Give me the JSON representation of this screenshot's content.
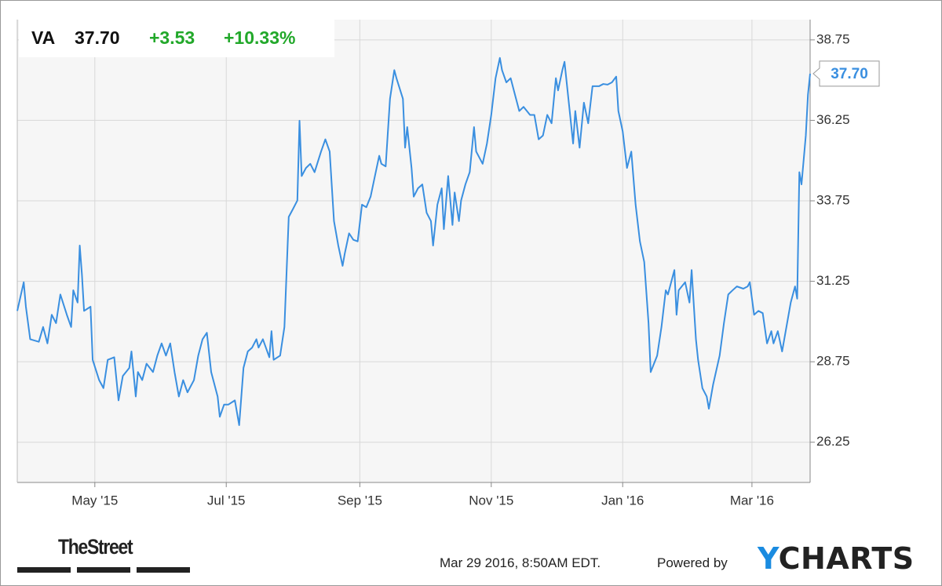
{
  "chart_data": {
    "type": "line",
    "quote": {
      "symbol": "VA",
      "price": "37.70",
      "change": "+3.53",
      "change_percent": "+10.33%"
    },
    "x": [
      0,
      3,
      4,
      6,
      10,
      12,
      14,
      16,
      18,
      20,
      23,
      25,
      26,
      28,
      29,
      30,
      31,
      34,
      35,
      38,
      40,
      42,
      45,
      47,
      49,
      52,
      53,
      55,
      56,
      58,
      60,
      63,
      65,
      67,
      69,
      71,
      73,
      75,
      77,
      79,
      82,
      84,
      86,
      88,
      90,
      93,
      94,
      96,
      98,
      101,
      103,
      105,
      107,
      109,
      111,
      112,
      114,
      117,
      118,
      119,
      122,
      124,
      126,
      128,
      130,
      131,
      132,
      134,
      136,
      138,
      141,
      143,
      145,
      147,
      149,
      151,
      152,
      154,
      156,
      158,
      160,
      162,
      164,
      166,
      168,
      169,
      171,
      173,
      175,
      176,
      179,
      180,
      181,
      183,
      184,
      186,
      188,
      190,
      192,
      193,
      195,
      197,
      198,
      200,
      202,
      203,
      205,
      206,
      208,
      210,
      212,
      213,
      216,
      218,
      220,
      222,
      224,
      225,
      227,
      229,
      231,
      233,
      235,
      238,
      240,
      242,
      244,
      246,
      248,
      250,
      251,
      253,
      254,
      256,
      258,
      259,
      261,
      263,
      265,
      267,
      270,
      272,
      274,
      276,
      278,
      279,
      281,
      283,
      285,
      287,
      289,
      291,
      293,
      294,
      297,
      299,
      301,
      302,
      305,
      306,
      307,
      310,
      312,
      313,
      315,
      316,
      318,
      320,
      321,
      323,
      326,
      328,
      330,
      332,
      334,
      337,
      339,
      340,
      342,
      344,
      346,
      348,
      350,
      351,
      353,
      355,
      357,
      359,
      361,
      362,
      363,
      364,
      366,
      367,
      368
    ],
    "series": [
      {
        "name": "VA",
        "color": "#3a8fe0",
        "values": [
          30.33,
          31.22,
          30.46,
          29.45,
          29.37,
          29.83,
          29.32,
          30.21,
          29.95,
          30.84,
          30.21,
          29.83,
          30.97,
          30.59,
          32.36,
          31.47,
          30.33,
          30.46,
          28.81,
          28.18,
          27.93,
          28.81,
          28.89,
          27.55,
          28.31,
          28.56,
          29.07,
          27.67,
          28.43,
          28.18,
          28.69,
          28.43,
          28.94,
          29.32,
          28.94,
          29.32,
          28.43,
          27.67,
          28.18,
          27.8,
          28.18,
          28.94,
          29.45,
          29.65,
          28.43,
          27.67,
          27.04,
          27.42,
          27.42,
          27.55,
          26.78,
          28.56,
          29.07,
          29.19,
          29.45,
          29.19,
          29.45,
          28.89,
          29.7,
          28.81,
          28.94,
          29.83,
          33.25,
          33.5,
          33.76,
          36.24,
          34.52,
          34.77,
          34.9,
          34.64,
          35.28,
          35.66,
          35.28,
          33.12,
          32.36,
          31.73,
          32.11,
          32.74,
          32.54,
          32.49,
          33.63,
          33.55,
          33.88,
          34.52,
          35.15,
          34.9,
          34.82,
          36.92,
          37.81,
          37.56,
          36.92,
          35.4,
          36.04,
          34.77,
          33.88,
          34.14,
          34.26,
          33.38,
          33.12,
          32.36,
          33.63,
          34.14,
          32.87,
          34.52,
          33.0,
          34.01,
          33.12,
          33.76,
          34.26,
          34.64,
          36.04,
          35.28,
          34.9,
          35.53,
          36.42,
          37.56,
          38.19,
          37.81,
          37.43,
          37.56,
          37.05,
          36.54,
          36.67,
          36.42,
          36.42,
          35.66,
          35.78,
          36.42,
          36.16,
          37.56,
          37.18,
          37.81,
          38.07,
          36.8,
          35.53,
          36.54,
          35.4,
          36.8,
          36.16,
          37.31,
          37.31,
          37.38,
          37.36,
          37.43,
          37.61,
          36.54,
          35.91,
          34.77,
          35.28,
          33.63,
          32.49,
          31.85,
          29.95,
          28.43,
          28.94,
          29.83,
          30.97,
          30.84,
          31.6,
          30.21,
          30.97,
          31.22,
          30.59,
          31.6,
          29.45,
          28.81,
          27.93,
          27.67,
          27.29,
          28.05,
          28.94,
          29.95,
          30.84,
          30.97,
          31.09,
          31.02,
          31.09,
          31.22,
          30.21,
          30.33,
          30.26,
          29.32,
          29.7,
          29.32,
          29.7,
          29.07,
          29.83,
          30.59,
          31.09,
          30.71,
          34.64,
          34.26,
          35.78,
          37.05,
          37.7
        ]
      }
    ],
    "xlim": [
      0,
      368
    ],
    "xticks": [
      {
        "value": 36,
        "label": "May '15"
      },
      {
        "value": 97,
        "label": "Jul '15"
      },
      {
        "value": 159,
        "label": "Sep '15"
      },
      {
        "value": 220,
        "label": "Nov '15"
      },
      {
        "value": 281,
        "label": "Jan '16"
      },
      {
        "value": 341,
        "label": "Mar '16"
      }
    ],
    "ylim": [
      25.0,
      39.38
    ],
    "yticks": [
      26.25,
      28.75,
      31.25,
      33.75,
      36.25,
      38.75
    ],
    "grid": true
  },
  "footer": {
    "publisher": "TheStreet",
    "timestamp": "Mar 29 2016, 8:50AM EDT.",
    "powered_by": "Powered by",
    "brand": "YCHARTS"
  }
}
